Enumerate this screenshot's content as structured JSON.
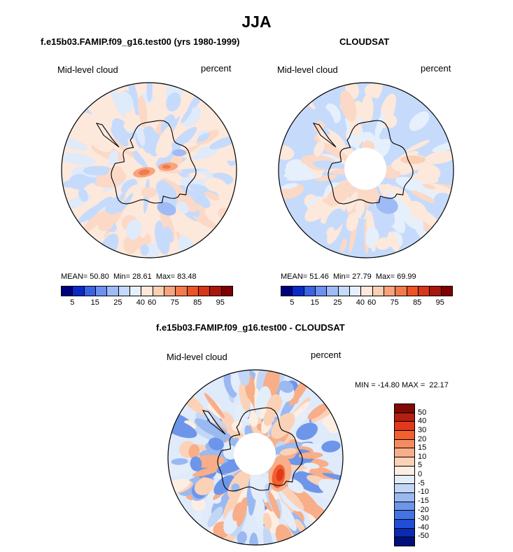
{
  "season": "JJA",
  "chart_data": [
    {
      "type": "heatmap",
      "title": "f.e15b03.FAMIP.f09_g16.test00 (yrs 1980-1999)",
      "variable": "Mid-level cloud",
      "units": "percent",
      "stats": {
        "mean_label": "MEAN=",
        "mean": "50.80",
        "min_label": "Min=",
        "min": "28.61",
        "max_label": "Max=",
        "max": "83.48"
      },
      "colorbar_ticks": [
        "5",
        "15",
        "25",
        "40",
        "60",
        "75",
        "85",
        "95"
      ]
    },
    {
      "type": "heatmap",
      "title": "CLOUDSAT",
      "variable": "Mid-level cloud",
      "units": "percent",
      "stats": {
        "mean_label": "MEAN=",
        "mean": "51.46",
        "min_label": "Min=",
        "min": "27.79",
        "max_label": "Max=",
        "max": "69.99"
      },
      "colorbar_ticks": [
        "5",
        "15",
        "25",
        "40",
        "60",
        "75",
        "85",
        "95"
      ]
    },
    {
      "type": "heatmap",
      "title": "f.e15b03.FAMIP.f09_g16.test00 - CLOUDSAT",
      "variable": "Mid-level cloud",
      "units": "percent",
      "stats": {
        "text": "MIN = -14.80 MAX =  22.17"
      },
      "colorbar_ticks": [
        "50",
        "40",
        "30",
        "20",
        "15",
        "10",
        "5",
        "0",
        "-5",
        "-10",
        "-15",
        "-20",
        "-30",
        "-40",
        "-50"
      ]
    }
  ],
  "seq_colors": [
    "#00007f",
    "#0a2ac8",
    "#3a64e6",
    "#6b92f0",
    "#9fbbf6",
    "#c6dbfb",
    "#e6f0fc",
    "#fde8dc",
    "#fbcfb4",
    "#f7a47c",
    "#f27a4e",
    "#ed5325",
    "#d6361a",
    "#a9160d",
    "#7f0000"
  ],
  "diff_colors": [
    "#7f0a06",
    "#b3200f",
    "#e2381b",
    "#f2602f",
    "#f58c5e",
    "#f8ae88",
    "#fbd2b7",
    "#fdeee3",
    "#e4edfa",
    "#c2d6f6",
    "#9ab9f0",
    "#6d96ea",
    "#4474e4",
    "#1f4ed8",
    "#0b2bb2",
    "#000f7a"
  ]
}
